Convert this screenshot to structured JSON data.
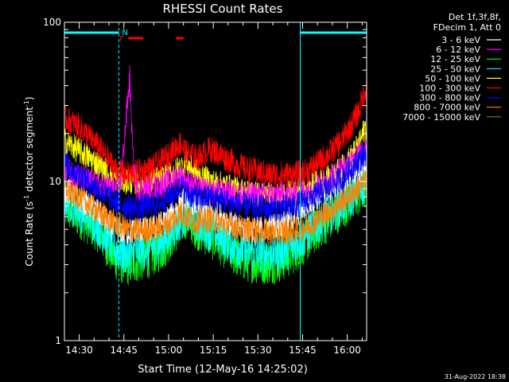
{
  "chart_data": {
    "type": "line",
    "title": "RHESSI Count Rates",
    "xlabel": "Start Time (12-May-16 14:25:02)",
    "ylabel_main": "Count Rate (s",
    "ylabel_sup1": "-1",
    "ylabel_mid": " detector segment",
    "ylabel_sup2": "-1",
    "ylabel_end": ")",
    "ylog": true,
    "xlim_min": [
      25.033,
      126.5
    ],
    "ylim": [
      1,
      100
    ],
    "x_ticks": [
      {
        "min": 30,
        "label": "14:30"
      },
      {
        "min": 45,
        "label": "14:45"
      },
      {
        "min": 60,
        "label": "15:00"
      },
      {
        "min": 75,
        "label": "15:15"
      },
      {
        "min": 90,
        "label": "15:30"
      },
      {
        "min": 105,
        "label": "15:45"
      },
      {
        "min": 120,
        "label": "16:00"
      }
    ],
    "y_ticks": [
      {
        "v": 1,
        "label": "1"
      },
      {
        "v": 10,
        "label": "10"
      },
      {
        "v": 100,
        "label": "100"
      }
    ],
    "legend_header": [
      "Det 1f,3f,8f,",
      "FDecim 1, Att 0"
    ],
    "legend_position": "outside-right",
    "series": [
      {
        "name": "3 - 6 keV",
        "color": "#ffffff",
        "x": [
          25,
          36,
          42,
          46,
          50,
          54,
          58,
          62,
          66,
          70,
          74,
          78,
          82,
          86,
          90,
          94,
          98,
          102,
          106,
          110,
          114,
          118,
          121,
          124,
          126
        ],
        "y": [
          9,
          6.5,
          5,
          4.8,
          5,
          5,
          5.5,
          6.5,
          8,
          7,
          6.5,
          6,
          5.3,
          5,
          5,
          5.2,
          5.4,
          6,
          7,
          8,
          9,
          10,
          11,
          12,
          13
        ]
      },
      {
        "name": "6 - 12 keV",
        "color": "#ff00ff",
        "x": [
          25,
          36,
          42,
          44,
          46,
          47,
          48,
          49,
          50,
          54,
          58,
          62,
          64,
          66,
          70,
          74,
          78,
          82,
          86,
          90,
          94,
          98,
          102,
          106,
          110,
          114,
          118,
          121,
          124,
          126
        ],
        "y": [
          12,
          9.5,
          9,
          10,
          28,
          45,
          14,
          9,
          9,
          9,
          9.5,
          10.5,
          11,
          10,
          9,
          8.7,
          8.6,
          8.4,
          8.3,
          8.2,
          8.2,
          8.3,
          8.4,
          8.8,
          9.5,
          10.5,
          12,
          13,
          15,
          17
        ]
      },
      {
        "name": "12 - 25 keV",
        "color": "#00ff00",
        "x": [
          25,
          36,
          42,
          46,
          50,
          54,
          58,
          62,
          66,
          70,
          74,
          78,
          82,
          86,
          90,
          94,
          98,
          102,
          106,
          110,
          114,
          118,
          121,
          124,
          126
        ],
        "y": [
          7,
          5,
          3.3,
          3,
          3.2,
          3.4,
          3.8,
          4.8,
          6,
          5,
          4.5,
          4,
          3.5,
          3.2,
          3.1,
          3.1,
          3.2,
          3.6,
          4.2,
          5,
          5.8,
          6.8,
          7.5,
          8.3,
          9
        ]
      },
      {
        "name": "25 - 50 keV",
        "color": "#00ffff",
        "x": [
          25,
          36,
          42,
          46,
          50,
          54,
          58,
          62,
          66,
          70,
          74,
          78,
          82,
          86,
          90,
          94,
          98,
          102,
          106,
          110,
          114,
          118,
          121,
          124,
          126
        ],
        "y": [
          8,
          5.5,
          3.8,
          3.5,
          3.7,
          3.9,
          4.2,
          5.2,
          6.5,
          5.5,
          5,
          4.5,
          4,
          3.7,
          3.6,
          3.6,
          3.7,
          4,
          4.7,
          5.5,
          6.3,
          7.3,
          8,
          9,
          10
        ]
      },
      {
        "name": "50 - 100 keV",
        "color": "#ffff00",
        "x": [
          25,
          36,
          42,
          46,
          50,
          54,
          58,
          62,
          66,
          70,
          74,
          78,
          82,
          86,
          90,
          94,
          98,
          102,
          106,
          110,
          114,
          118,
          121,
          124,
          126
        ],
        "y": [
          18,
          13,
          10.5,
          10,
          10,
          10,
          10.5,
          11.5,
          13,
          11,
          10,
          9.5,
          9,
          8.6,
          8.3,
          8.2,
          8.2,
          8.4,
          8.9,
          9.8,
          10.5,
          12,
          14,
          17,
          22
        ]
      },
      {
        "name": "100 - 300 keV",
        "color": "#ff0000",
        "x": [
          25,
          30,
          36,
          42,
          46,
          50,
          54,
          58,
          62,
          64,
          66,
          70,
          74,
          78,
          82,
          86,
          90,
          94,
          98,
          102,
          106,
          110,
          114,
          118,
          121,
          124,
          126
        ],
        "y": [
          25,
          22,
          17,
          12,
          11,
          11.5,
          12,
          13.5,
          16,
          17.5,
          15,
          14,
          16,
          14.5,
          13,
          12,
          11.5,
          11,
          11,
          11,
          11.5,
          13,
          15,
          18,
          22,
          28,
          38
        ]
      },
      {
        "name": "300 - 800 keV",
        "color": "#0000ff",
        "x": [
          25,
          30,
          36,
          42,
          46,
          50,
          54,
          58,
          62,
          64,
          66,
          70,
          74,
          78,
          82,
          86,
          90,
          94,
          98,
          102,
          106,
          110,
          114,
          118,
          121,
          124,
          126
        ],
        "y": [
          13,
          11,
          9,
          7.5,
          7,
          6.8,
          7,
          7.5,
          8.5,
          9.5,
          8.5,
          7.8,
          8,
          7.6,
          7.2,
          7,
          6.9,
          6.8,
          6.8,
          7,
          7.5,
          8.3,
          9.2,
          10.5,
          12,
          13.5,
          15
        ]
      },
      {
        "name": "800 - 7000 keV",
        "color": "#ff8000",
        "x": [
          25,
          30,
          36,
          42,
          46,
          50,
          54,
          58,
          62,
          64,
          66,
          70,
          74,
          78,
          82,
          86,
          90,
          94,
          98,
          102,
          106,
          110,
          114,
          118,
          121,
          124,
          126
        ],
        "y": [
          9,
          8,
          6.5,
          5.5,
          5,
          4.9,
          5,
          5.2,
          5.8,
          6.5,
          6,
          5.6,
          5.8,
          5.5,
          5.2,
          5,
          4.9,
          4.8,
          4.8,
          4.9,
          5.2,
          5.8,
          6.5,
          7.5,
          8.3,
          9.2,
          10
        ]
      },
      {
        "name": "7000 - 15000 keV",
        "color": "#808000",
        "x": [],
        "y": []
      }
    ],
    "annotations": {
      "cyan_bars": [
        [
          25.033,
          43.3
        ],
        [
          104.2,
          126.5
        ]
      ],
      "dashed_lines_min": [
        43.3,
        126.5
      ],
      "solid_lines_min": [
        25.033,
        104.2
      ],
      "cyan_label": "N",
      "red_label": "F",
      "red_bars": [
        [
          46.5,
          51.5
        ],
        [
          62.5,
          65
        ]
      ]
    },
    "footer_date": "31-Aug-2022 18:38"
  }
}
